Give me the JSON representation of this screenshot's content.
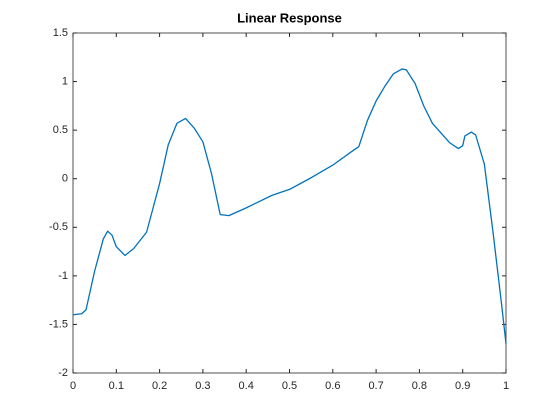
{
  "chart_data": {
    "type": "line",
    "title": "Linear Response",
    "x": [
      0,
      0.02,
      0.03,
      0.05,
      0.07,
      0.08,
      0.09,
      0.1,
      0.12,
      0.14,
      0.17,
      0.2,
      0.22,
      0.24,
      0.26,
      0.28,
      0.3,
      0.32,
      0.34,
      0.36,
      0.4,
      0.46,
      0.5,
      0.55,
      0.6,
      0.65,
      0.66,
      0.68,
      0.7,
      0.72,
      0.74,
      0.76,
      0.77,
      0.79,
      0.81,
      0.83,
      0.85,
      0.87,
      0.89,
      0.9,
      0.905,
      0.92,
      0.93,
      0.95,
      0.97,
      0.99,
      1
    ],
    "series": [
      {
        "color": "#0072bd",
        "values": [
          -1.4,
          -1.39,
          -1.35,
          -0.95,
          -0.62,
          -0.54,
          -0.58,
          -0.7,
          -0.79,
          -0.72,
          -0.55,
          -0.05,
          0.35,
          0.57,
          0.62,
          0.52,
          0.38,
          0.05,
          -0.37,
          -0.38,
          -0.3,
          -0.17,
          -0.11,
          0.01,
          0.14,
          0.3,
          0.33,
          0.6,
          0.8,
          0.95,
          1.08,
          1.13,
          1.12,
          0.98,
          0.75,
          0.57,
          0.47,
          0.37,
          0.31,
          0.34,
          0.44,
          0.48,
          0.45,
          0.15,
          -0.55,
          -1.3,
          -1.7
        ]
      }
    ],
    "xlim": [
      0,
      1
    ],
    "xticks": [
      0,
      0.1,
      0.2,
      0.3,
      0.4,
      0.5,
      0.6,
      0.7,
      0.8,
      0.9,
      1
    ],
    "ylim": [
      -2,
      1.5
    ],
    "yticks": [
      -2,
      -1.5,
      -1,
      -0.5,
      0,
      0.5,
      1,
      1.5
    ]
  }
}
